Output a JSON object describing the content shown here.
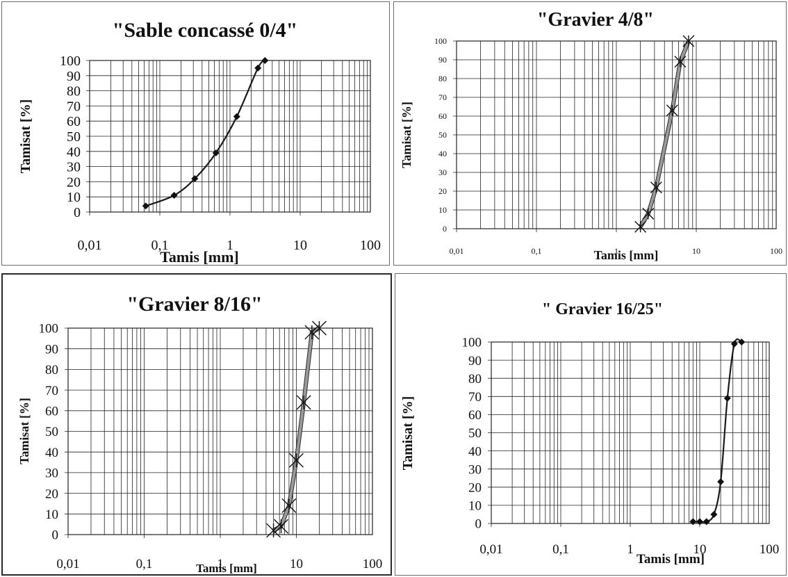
{
  "chart_data": [
    {
      "type": "line",
      "title": "\"Sable concassé 0/4\"",
      "xlabel": "Tamis [mm]",
      "ylabel": "Tamisat [%]",
      "x_scale": "log",
      "xlim": [
        0.01,
        100
      ],
      "ylim": [
        0,
        100
      ],
      "x_tick_labels": [
        "0,01",
        "0,1",
        "1",
        "10",
        "100"
      ],
      "y_tick_labels": [
        "0",
        "10",
        "20",
        "30",
        "40",
        "50",
        "60",
        "70",
        "80",
        "90",
        "100"
      ],
      "grid": true,
      "marker": "diamond",
      "line_color": "#1a1a1a",
      "series": [
        {
          "x": [
            0.063,
            0.16,
            0.315,
            0.63,
            1.25,
            2.5,
            3.15
          ],
          "y": [
            4,
            11,
            22,
            39,
            63,
            95,
            100
          ]
        }
      ]
    },
    {
      "type": "line",
      "title": "\"Gravier 4/8\"",
      "xlabel": "Tamis [mm]",
      "ylabel": "Tamisat [%]",
      "x_scale": "log",
      "xlim": [
        0.01,
        100
      ],
      "ylim": [
        0,
        100
      ],
      "x_tick_labels": [
        "0,01",
        "0,1",
        "1",
        "10",
        "100"
      ],
      "y_tick_labels": [
        "0",
        "10",
        "20",
        "30",
        "40",
        "50",
        "60",
        "70",
        "80",
        "90",
        "100"
      ],
      "grid": true,
      "marker": "star",
      "line_color": "#9a9a9a",
      "series": [
        {
          "x": [
            2,
            2.5,
            3.15,
            5,
            6.3,
            8
          ],
          "y": [
            1,
            8,
            22,
            63,
            89,
            100
          ]
        }
      ]
    },
    {
      "type": "line",
      "title": "\"Gravier 8/16\"",
      "xlabel": "Tamis [mm]",
      "ylabel": "Tamisat [%]",
      "x_scale": "log",
      "xlim": [
        0.01,
        100
      ],
      "ylim": [
        0,
        100
      ],
      "x_tick_labels": [
        "0,01",
        "0,1",
        "1",
        "10",
        "100"
      ],
      "y_tick_labels": [
        "0",
        "10",
        "20",
        "30",
        "40",
        "50",
        "60",
        "70",
        "80",
        "90",
        "100"
      ],
      "grid": true,
      "marker": "star",
      "line_color": "#9a9a9a",
      "series": [
        {
          "x": [
            5,
            6.3,
            8,
            10,
            12.5,
            16,
            20
          ],
          "y": [
            2,
            4,
            14,
            36,
            64,
            98,
            100
          ]
        }
      ]
    },
    {
      "type": "line",
      "title": "\" Gravier 16/25\"",
      "xlabel": "Tamis [mm]",
      "ylabel": "Tamisat [%]",
      "x_scale": "log",
      "xlim": [
        0.01,
        100
      ],
      "ylim": [
        0,
        100
      ],
      "x_tick_labels": [
        "0,01",
        "0,1",
        "1",
        "10",
        "100"
      ],
      "y_tick_labels": [
        "0",
        "10",
        "20",
        "30",
        "40",
        "50",
        "60",
        "70",
        "80",
        "90",
        "100"
      ],
      "grid": true,
      "marker": "diamond",
      "line_color": "#1a1a1a",
      "series": [
        {
          "x": [
            8,
            10,
            12.5,
            16,
            20,
            25,
            31.5,
            40
          ],
          "y": [
            1,
            1,
            1,
            5,
            23,
            69,
            99,
            100
          ]
        }
      ]
    }
  ]
}
